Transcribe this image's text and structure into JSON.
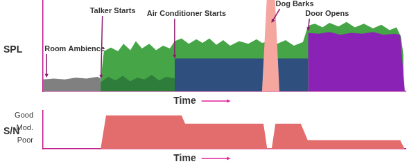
{
  "chart_data": [
    {
      "type": "area",
      "y_label": "SPL",
      "x_label": "Time",
      "xlim": [
        0,
        100
      ],
      "ylim": [
        0,
        100
      ],
      "tick_labels": false,
      "grid": false,
      "series": [
        {
          "color": "#808080",
          "x": [
            0,
            3,
            6,
            9,
            12,
            15,
            16
          ],
          "values": [
            13,
            14,
            13,
            15,
            14,
            16,
            14
          ]
        },
        {
          "color": "#46a546",
          "x": [
            15.9,
            16.8,
            18.7,
            20.7,
            22.2,
            24.1,
            25.6,
            27.3,
            29.3,
            31.2,
            33.1,
            35,
            36.3,
            38.2,
            40.2,
            42.3,
            44,
            45.9,
            47.8,
            49.7,
            51.6,
            54.1,
            56.6,
            58.9,
            60.4,
            62.5,
            64.6,
            66.9,
            69.2,
            71.7,
            73.1,
            75,
            77.1,
            79,
            81.5,
            83.7,
            86,
            88.5,
            91,
            93.3,
            95.6,
            97.5,
            98.7,
            99.4
          ],
          "values": [
            12,
            44,
            48,
            44,
            52,
            45,
            55,
            47,
            52,
            45,
            50,
            47,
            55,
            58,
            52,
            57,
            53,
            58,
            51,
            56,
            50,
            55,
            52,
            57,
            53,
            55,
            52,
            56,
            50,
            54,
            72,
            74,
            70,
            75,
            71,
            76,
            70,
            74,
            69,
            73,
            67,
            70,
            60,
            40
          ]
        },
        {
          "color": "#2f7d3a",
          "x": [
            15.9,
            18,
            20,
            22,
            24,
            26,
            28,
            30,
            32,
            34,
            36.5
          ],
          "values": [
            10,
            16,
            12,
            17,
            11,
            15,
            13,
            18,
            12,
            16,
            14
          ]
        },
        {
          "color": "#2f4f7f",
          "x": [
            36.3,
            73.1
          ],
          "values": [
            36,
            36
          ]
        },
        {
          "color": "#f4a69f",
          "x": [
            60.4,
            61.7,
            64,
            65.2
          ],
          "values": [
            0,
            100,
            100,
            0
          ]
        },
        {
          "color": "#8b22b6",
          "x": [
            73.1,
            73.1,
            76,
            79,
            82,
            85,
            88,
            91,
            94,
            97,
            98.5,
            99.8
          ],
          "values": [
            0,
            64,
            63,
            65,
            62,
            64,
            63,
            65,
            62,
            63,
            62,
            0
          ]
        }
      ],
      "annotations": [
        {
          "text": "Room Ambience",
          "x": 1,
          "y": 15
        },
        {
          "text": "Talker Starts",
          "x": 16,
          "y": 14
        },
        {
          "text": "Air Conditioner Starts",
          "x": 36.3,
          "y": 36
        },
        {
          "text": "Dog Barks",
          "x": 63,
          "y": 75
        },
        {
          "text": "Door Opens",
          "x": 73.1,
          "y": 66
        }
      ]
    },
    {
      "type": "area",
      "y_label": "S/N",
      "x_label": "Time",
      "xlim": [
        0,
        100
      ],
      "ylim": [
        0.3,
        3.4
      ],
      "yticks": [
        {
          "value": 1,
          "label": "Poor"
        },
        {
          "value": 2,
          "label": "Mod."
        },
        {
          "value": 3,
          "label": "Good"
        }
      ],
      "tick_labels": "y",
      "grid": false,
      "series": [
        {
          "color": "#e36c6c",
          "x": [
            15.9,
            17.4,
            38.2,
            39.2,
            60.8,
            61.8,
            63.1,
            64.1,
            71.1,
            73,
            98.5,
            99.6
          ],
          "values": [
            0.3,
            3,
            3,
            2.33,
            2.33,
            0.35,
            0.35,
            2.33,
            2.33,
            1,
            1,
            0.35
          ]
        }
      ]
    }
  ]
}
